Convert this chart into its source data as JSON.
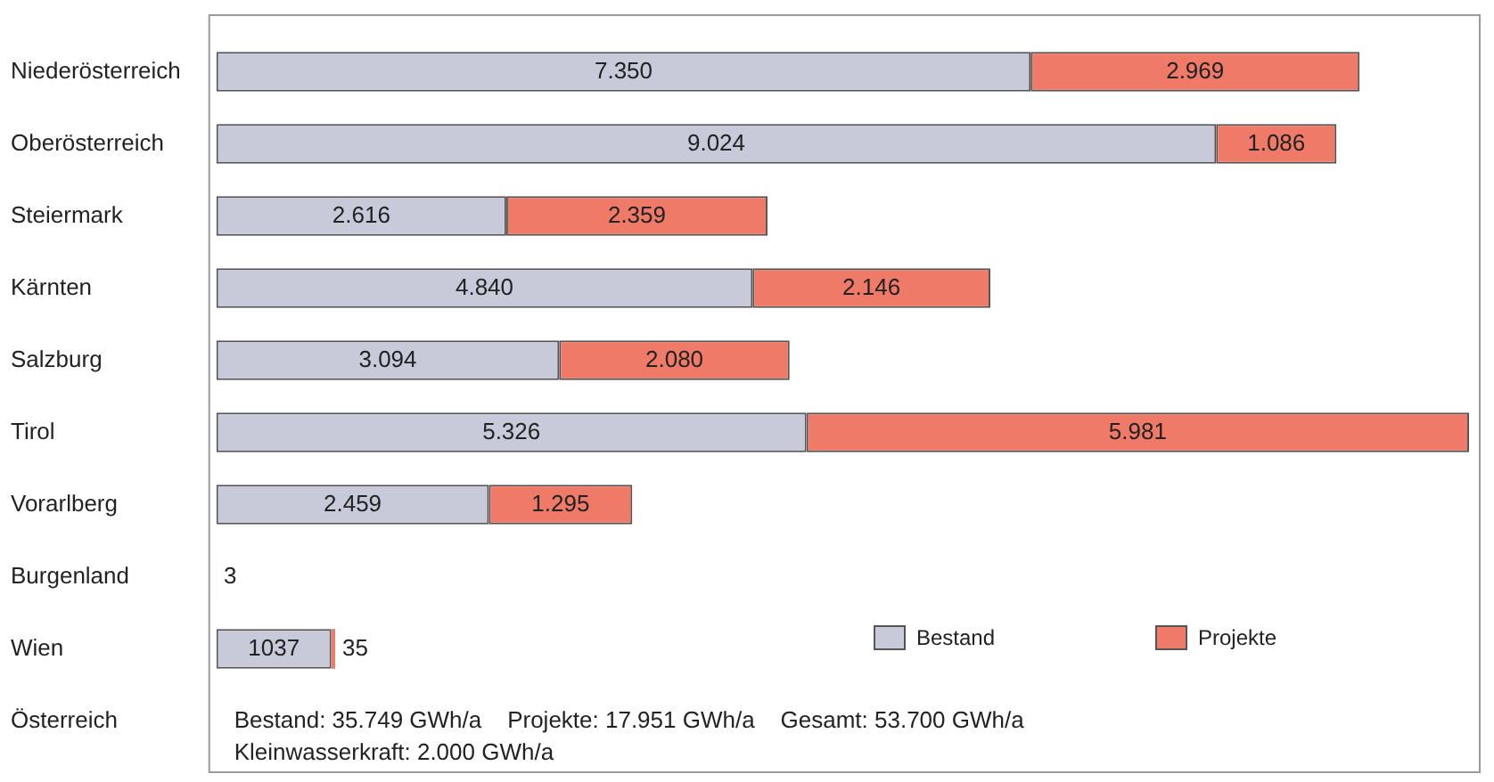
{
  "chart_data": {
    "type": "bar",
    "orientation": "horizontal",
    "stacked": true,
    "legend": "bottom right",
    "grid": false,
    "categories": [
      "Niederösterreich",
      "Oberösterreich",
      "Steiermark",
      "Kärnten",
      "Salzburg",
      "Tirol",
      "Vorarlberg",
      "Burgenland",
      "Wien",
      "Österreich"
    ],
    "series": [
      {
        "name": "Bestand",
        "color": "#c8cad9",
        "values": [
          7350,
          9024,
          2616,
          4840,
          3094,
          5326,
          2459,
          3,
          1037,
          null
        ],
        "value_labels": [
          "7.350",
          "9.024",
          "2.616",
          "4.840",
          "3.094",
          "5.326",
          "2.459",
          "3",
          "1037",
          null
        ]
      },
      {
        "name": "Projekte",
        "color": "#f07a68",
        "values": [
          2969,
          1086,
          2359,
          2146,
          2080,
          5981,
          1295,
          null,
          35,
          null
        ],
        "value_labels": [
          "2.969",
          "1.086",
          "2.359",
          "2.146",
          "2.080",
          "5.981",
          "1.295",
          null,
          "35",
          null
        ]
      }
    ],
    "annotations": [
      "Bestand: 35.749 GWh/a    Projekte: 17.951 GWh/a    Gesamt: 53.700 GWh/a",
      "Kleinwasserkraft: 2.000 GWh/a"
    ]
  }
}
